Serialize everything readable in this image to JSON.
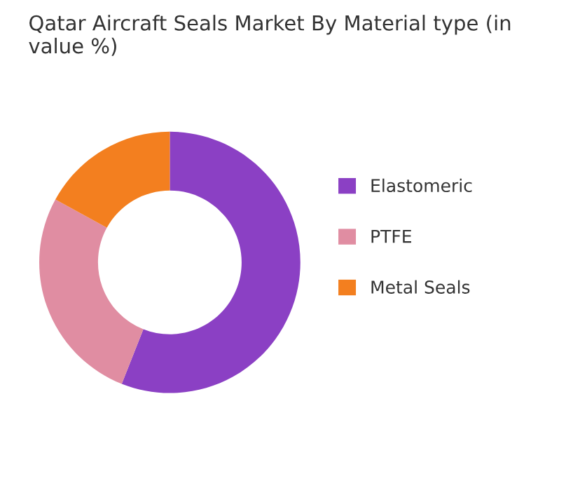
{
  "chart_data": {
    "type": "donut",
    "title": "Qatar Aircraft Seals Market By Material type (in value %)",
    "categories": [
      "Elastomeric",
      "PTFE",
      "Metal Seals"
    ],
    "values": [
      56,
      27,
      17
    ],
    "colors": [
      "#8b40c4",
      "#e08da2",
      "#f37f1f"
    ],
    "legend": "right"
  }
}
